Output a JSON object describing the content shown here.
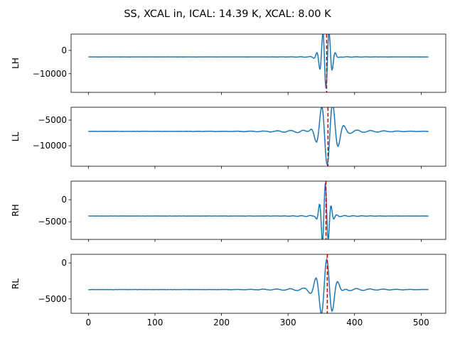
{
  "chart_data": {
    "type": "line",
    "title": "SS, XCAL in, ICAL: 14.39 K, XCAL: 8.00 K",
    "xlim": [
      -26,
      537
    ],
    "x_ticks": [
      0,
      100,
      200,
      300,
      400,
      500
    ],
    "x_tick_labels": [
      "0",
      "100",
      "200",
      "300",
      "400",
      "500"
    ],
    "line_color": "#1f77b4",
    "marker_color": "#cc0000",
    "panels": [
      {
        "ylabel": "LH",
        "ylim": [
          -18000,
          7000
        ],
        "y_ticks": [
          0,
          -10000
        ],
        "y_tick_labels": [
          "0",
          "−10000"
        ],
        "marker_x": 358,
        "signal": {
          "baseline": -2800,
          "x_center": 357,
          "amplitude": -13500,
          "decay": 7,
          "period": 9.5,
          "ripple_amp": 300,
          "ripple_decay": 30,
          "ripple_period": 14,
          "noise": 50
        }
      },
      {
        "ylabel": "LL",
        "ylim": [
          -14000,
          -2500
        ],
        "y_ticks": [
          -5000,
          -10000
        ],
        "y_tick_labels": [
          "−5000",
          "−10000"
        ],
        "marker_x": 360,
        "signal": {
          "baseline": -7200,
          "x_center": 359,
          "amplitude": -6500,
          "decay": 12,
          "period": 17,
          "ripple_amp": 650,
          "ripple_decay": 45,
          "ripple_period": 20,
          "noise": 60
        }
      },
      {
        "ylabel": "RH",
        "ylim": [
          -9000,
          4200
        ],
        "y_ticks": [
          0,
          -5000
        ],
        "y_tick_labels": [
          "0",
          "−5000"
        ],
        "marker_x": 357,
        "signal": {
          "baseline": -3700,
          "x_center": 356,
          "amplitude": 7500,
          "decay": 6,
          "period": 9,
          "ripple_amp": 280,
          "ripple_decay": 30,
          "ripple_period": 13,
          "noise": 40
        }
      },
      {
        "ylabel": "RL",
        "ylim": [
          -7000,
          1200
        ],
        "y_ticks": [
          0,
          -5000
        ],
        "y_tick_labels": [
          "0",
          "−5000"
        ],
        "marker_x": 359,
        "signal": {
          "baseline": -3700,
          "x_center": 358,
          "amplitude": 4200,
          "decay": 11,
          "period": 17,
          "ripple_amp": 380,
          "ripple_decay": 45,
          "ripple_period": 20,
          "noise": 30
        }
      }
    ],
    "n_points": 512,
    "grid": false,
    "legend": "none"
  }
}
